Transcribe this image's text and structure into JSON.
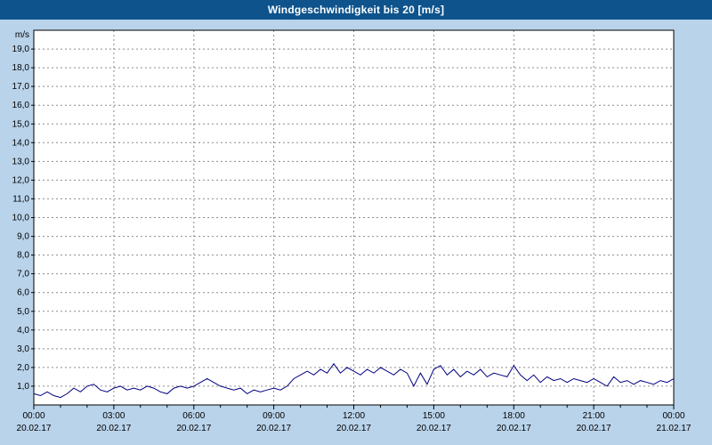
{
  "title_bar": {
    "title": "Windgeschwindigkeit bis 20 [m/s]"
  },
  "colors": {
    "title_bar_bg": "#0e538c",
    "page_bg": "#b9d3ea",
    "plot_bg": "#ffffff",
    "grid_color": "#8c8c8c",
    "line_color": "#000080",
    "axis_color": "#000000"
  },
  "chart_data": {
    "type": "line",
    "title": "Windgeschwindigkeit bis 20 [m/s]",
    "ylabel": "m/s",
    "unit_label": "m/s",
    "ylim": [
      0,
      20
    ],
    "ytick_step": 1,
    "ytick_labels": [
      "1,0",
      "2,0",
      "3,0",
      "4,0",
      "5,0",
      "6,0",
      "7,0",
      "8,0",
      "9,0",
      "10,0",
      "11,0",
      "12,0",
      "13,0",
      "14,0",
      "15,0",
      "16,0",
      "17,0",
      "18,0",
      "19,0"
    ],
    "x_hours_span": 24,
    "x_step_hours": 0.25,
    "grid": true,
    "legend": "none",
    "xticks": [
      {
        "time": "00:00",
        "date": "20.02.17",
        "hour": 0
      },
      {
        "time": "03:00",
        "date": "20.02.17",
        "hour": 3
      },
      {
        "time": "06:00",
        "date": "20.02.17",
        "hour": 6
      },
      {
        "time": "09:00",
        "date": "20.02.17",
        "hour": 9
      },
      {
        "time": "12:00",
        "date": "20.02.17",
        "hour": 12
      },
      {
        "time": "15:00",
        "date": "20.02.17",
        "hour": 15
      },
      {
        "time": "18:00",
        "date": "20.02.17",
        "hour": 18
      },
      {
        "time": "21:00",
        "date": "20.02.17",
        "hour": 21
      },
      {
        "time": "00:00",
        "date": "21.02.17",
        "hour": 24
      }
    ],
    "values": [
      0.6,
      0.5,
      0.7,
      0.5,
      0.4,
      0.6,
      0.9,
      0.7,
      1.0,
      1.1,
      0.8,
      0.7,
      0.9,
      1.0,
      0.8,
      0.9,
      0.8,
      1.0,
      0.9,
      0.7,
      0.6,
      0.9,
      1.0,
      0.9,
      1.0,
      1.2,
      1.4,
      1.2,
      1.0,
      0.9,
      0.8,
      0.9,
      0.6,
      0.8,
      0.7,
      0.8,
      0.9,
      0.8,
      1.0,
      1.4,
      1.6,
      1.8,
      1.6,
      1.9,
      1.7,
      2.2,
      1.7,
      2.0,
      1.8,
      1.6,
      1.9,
      1.7,
      2.0,
      1.8,
      1.6,
      1.9,
      1.7,
      1.0,
      1.7,
      1.1,
      1.9,
      2.1,
      1.6,
      1.9,
      1.5,
      1.8,
      1.6,
      1.9,
      1.5,
      1.7,
      1.6,
      1.5,
      2.1,
      1.6,
      1.3,
      1.6,
      1.2,
      1.5,
      1.3,
      1.4,
      1.2,
      1.4,
      1.3,
      1.2,
      1.4,
      1.2,
      1.0,
      1.5,
      1.2,
      1.3,
      1.1,
      1.3,
      1.2,
      1.1,
      1.3,
      1.2,
      1.4
    ]
  }
}
